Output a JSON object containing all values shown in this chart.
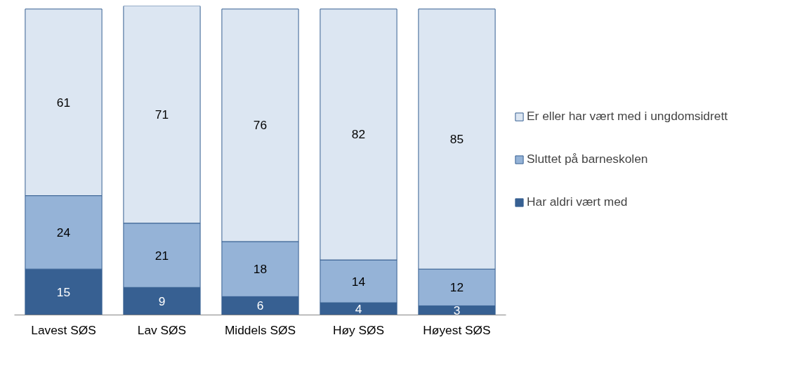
{
  "chart_data": {
    "type": "bar",
    "stacked": true,
    "data_labels": true,
    "legend": "right",
    "grid": false,
    "tick_labels": "x",
    "ylim": [
      0,
      101
    ],
    "categories": [
      "Lavest SØS",
      "Lav SØS",
      "Middels SØS",
      "Høy SØS",
      "Høyest SØS"
    ],
    "series": [
      {
        "name": "Har aldri vært med",
        "color": "#376092",
        "values": [
          15,
          9,
          6,
          4,
          3
        ]
      },
      {
        "name": "Sluttet på barneskolen",
        "color": "#95b3d7",
        "values": [
          24,
          21,
          18,
          14,
          12
        ]
      },
      {
        "name": "Er eller har vært med i ungdomsidrett",
        "color": "#dce6f2",
        "values": [
          61,
          71,
          76,
          82,
          85
        ]
      }
    ]
  }
}
